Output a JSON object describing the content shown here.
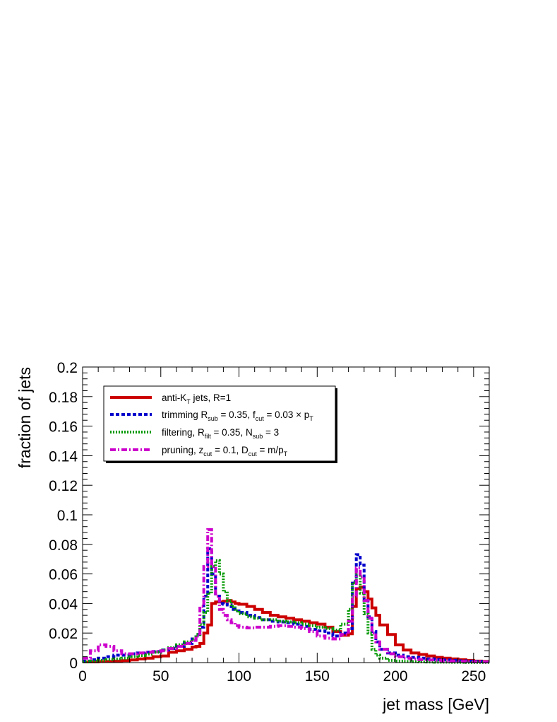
{
  "chart_data": {
    "type": "line",
    "xlabel": "jet mass [GeV]",
    "ylabel": "fraction of jets",
    "xlim": [
      0,
      260
    ],
    "ylim": [
      0,
      0.2
    ],
    "x_ticks": [
      0,
      50,
      100,
      150,
      200,
      250
    ],
    "x_tick_labels": [
      "0",
      "50",
      "100",
      "150",
      "200",
      "250"
    ],
    "y_ticks": [
      0,
      0.02,
      0.04,
      0.06,
      0.08,
      0.1,
      0.12,
      0.14,
      0.16,
      0.18,
      0.2
    ],
    "y_tick_labels": [
      "0",
      "0.02",
      "0.04",
      "0.06",
      "0.08",
      "0.1",
      "0.12",
      "0.14",
      "0.16",
      "0.18",
      "0.2"
    ],
    "grid": false,
    "legend_position": "top-left",
    "series": [
      {
        "name": "anti-K_T jets, R=1",
        "legend": {
          "base": "anti-K",
          "sub": "T",
          "rest": " jets, R=1"
        },
        "color": "#cc0000",
        "style": "solid",
        "edges": [
          0,
          5,
          10,
          15,
          20,
          25,
          30,
          35,
          40,
          45,
          50,
          55,
          60,
          65,
          70,
          72.5,
          75,
          77.5,
          80,
          82.5,
          85,
          87.5,
          90,
          92.5,
          95,
          97.5,
          100,
          105,
          110,
          115,
          120,
          125,
          130,
          135,
          140,
          145,
          150,
          155,
          160,
          165,
          170,
          172.5,
          175,
          177.5,
          180,
          182.5,
          185,
          187.5,
          190,
          195,
          200,
          205,
          210,
          215,
          220,
          225,
          230,
          235,
          240,
          245,
          250,
          255,
          260
        ],
        "values": [
          0.0005,
          0.0005,
          0.0007,
          0.0008,
          0.001,
          0.0013,
          0.0018,
          0.0025,
          0.003,
          0.004,
          0.0045,
          0.007,
          0.008,
          0.009,
          0.0105,
          0.011,
          0.013,
          0.02,
          0.0255,
          0.04,
          0.041,
          0.041,
          0.0415,
          0.042,
          0.041,
          0.04,
          0.0395,
          0.038,
          0.036,
          0.034,
          0.032,
          0.031,
          0.03,
          0.029,
          0.028,
          0.027,
          0.026,
          0.024,
          0.021,
          0.0185,
          0.0195,
          0.038,
          0.05,
          0.051,
          0.048,
          0.043,
          0.037,
          0.032,
          0.0255,
          0.019,
          0.012,
          0.0085,
          0.0065,
          0.0055,
          0.0045,
          0.0035,
          0.003,
          0.0025,
          0.002,
          0.0015,
          0.001,
          0.0008
        ]
      },
      {
        "name": "trimming R_sub = 0.35, f_cut = 0.03 × p_T",
        "legend": {
          "base": "trimming R",
          "sub": "sub",
          "mid": " = 0.35, f",
          "sub2": "cut",
          "mid2": " = 0.03 × p",
          "sub3": "T"
        },
        "color": "#0000cc",
        "style": "dash",
        "edges": [
          0,
          5,
          10,
          15,
          20,
          25,
          30,
          35,
          40,
          45,
          50,
          55,
          60,
          65,
          70,
          72.5,
          75,
          77.5,
          80,
          82.5,
          85,
          87.5,
          90,
          92.5,
          95,
          97.5,
          100,
          105,
          110,
          115,
          120,
          125,
          130,
          135,
          140,
          145,
          150,
          155,
          160,
          165,
          170,
          172.5,
          175,
          177.5,
          180,
          182.5,
          185,
          187.5,
          190,
          195,
          200,
          205,
          210,
          215,
          220,
          225,
          230,
          235,
          240,
          245,
          250,
          255,
          260
        ],
        "values": [
          0.001,
          0.002,
          0.003,
          0.004,
          0.005,
          0.005,
          0.006,
          0.0065,
          0.007,
          0.0075,
          0.0085,
          0.0095,
          0.011,
          0.013,
          0.016,
          0.019,
          0.024,
          0.045,
          0.077,
          0.06,
          0.045,
          0.04,
          0.0395,
          0.039,
          0.036,
          0.035,
          0.034,
          0.032,
          0.0305,
          0.029,
          0.028,
          0.0275,
          0.027,
          0.026,
          0.0245,
          0.0225,
          0.0215,
          0.02,
          0.018,
          0.02,
          0.023,
          0.055,
          0.073,
          0.066,
          0.042,
          0.031,
          0.021,
          0.014,
          0.009,
          0.0065,
          0.005,
          0.004,
          0.0035,
          0.003,
          0.0025,
          0.002,
          0.0018,
          0.0015,
          0.0012,
          0.001,
          0.0008,
          0.0005
        ]
      },
      {
        "name": "filtering, R_filt = 0.35, N_sub = 3",
        "legend": {
          "base": "filtering, R",
          "sub": "filt",
          "mid": " = 0.35, N",
          "sub2": "sub",
          "mid2": " = 3"
        },
        "color": "#009900",
        "style": "dot",
        "edges": [
          0,
          5,
          10,
          15,
          20,
          25,
          30,
          35,
          40,
          45,
          50,
          55,
          60,
          65,
          70,
          72.5,
          75,
          77.5,
          80,
          82.5,
          85,
          87.5,
          90,
          92.5,
          95,
          97.5,
          100,
          105,
          110,
          115,
          120,
          125,
          130,
          135,
          140,
          145,
          150,
          155,
          160,
          165,
          170,
          172.5,
          175,
          177.5,
          180,
          182.5,
          185,
          187.5,
          190,
          195,
          200,
          205,
          210,
          215,
          220,
          225,
          230,
          235,
          240,
          245,
          250,
          255,
          260
        ],
        "values": [
          0.0005,
          0.001,
          0.0015,
          0.002,
          0.0025,
          0.003,
          0.004,
          0.0048,
          0.0058,
          0.007,
          0.0085,
          0.01,
          0.012,
          0.014,
          0.016,
          0.019,
          0.026,
          0.034,
          0.047,
          0.065,
          0.069,
          0.06,
          0.048,
          0.042,
          0.038,
          0.035,
          0.033,
          0.031,
          0.03,
          0.029,
          0.029,
          0.028,
          0.0275,
          0.027,
          0.026,
          0.025,
          0.024,
          0.023,
          0.022,
          0.026,
          0.036,
          0.054,
          0.06,
          0.047,
          0.033,
          0.02,
          0.009,
          0.005,
          0.003,
          0.0015,
          0.001,
          0.0008,
          0.0006,
          0.0005,
          0.0004,
          0.0003,
          0.0003,
          0.0002,
          0.0002,
          0.0001,
          0.0001,
          0.0001
        ]
      },
      {
        "name": "pruning, z_cut = 0.1, D_cut = m/p_T",
        "legend": {
          "base": "pruning, z",
          "sub": "cut",
          "mid": " = 0.1, D",
          "sub2": "cut",
          "mid2": " = m/p",
          "sub3": "T"
        },
        "color": "#cc00cc",
        "style": "dashdot",
        "edges": [
          0,
          5,
          10,
          15,
          20,
          25,
          30,
          35,
          40,
          45,
          50,
          55,
          60,
          65,
          70,
          72.5,
          75,
          77.5,
          80,
          82.5,
          85,
          87.5,
          90,
          92.5,
          95,
          97.5,
          100,
          105,
          110,
          115,
          120,
          125,
          130,
          135,
          140,
          145,
          150,
          155,
          160,
          165,
          170,
          172.5,
          175,
          177.5,
          180,
          182.5,
          185,
          187.5,
          190,
          195,
          200,
          205,
          210,
          215,
          220,
          225,
          230,
          235,
          240,
          245,
          250,
          255,
          260
        ],
        "values": [
          0.003,
          0.008,
          0.012,
          0.011,
          0.008,
          0.006,
          0.006,
          0.0065,
          0.007,
          0.0075,
          0.008,
          0.0095,
          0.011,
          0.013,
          0.015,
          0.018,
          0.038,
          0.065,
          0.09,
          0.065,
          0.045,
          0.036,
          0.032,
          0.029,
          0.027,
          0.025,
          0.024,
          0.0235,
          0.024,
          0.024,
          0.0245,
          0.025,
          0.0245,
          0.024,
          0.023,
          0.021,
          0.018,
          0.0165,
          0.016,
          0.019,
          0.028,
          0.045,
          0.064,
          0.058,
          0.042,
          0.03,
          0.02,
          0.014,
          0.009,
          0.006,
          0.004,
          0.003,
          0.0025,
          0.002,
          0.0018,
          0.0015,
          0.0012,
          0.001,
          0.0008,
          0.0006,
          0.0005,
          0.0004
        ]
      }
    ]
  }
}
